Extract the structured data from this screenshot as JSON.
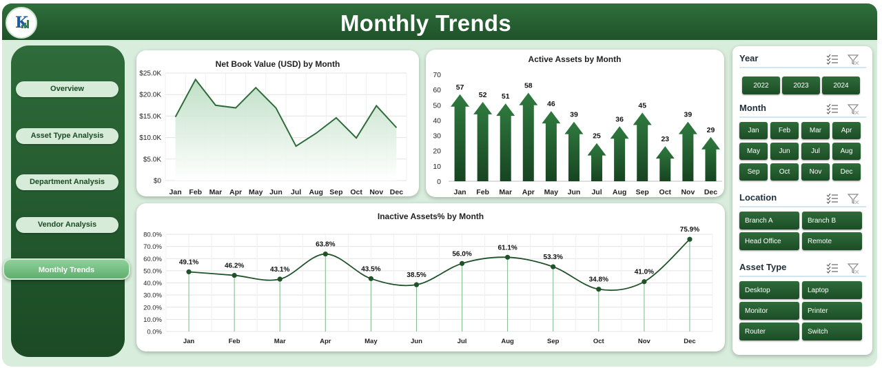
{
  "header": {
    "title": "Monthly Trends",
    "logo_text": "K"
  },
  "sidebar": {
    "items": [
      {
        "label": "Overview",
        "active": false
      },
      {
        "label": "Asset Type Analysis",
        "active": false
      },
      {
        "label": "Department Analysis",
        "active": false
      },
      {
        "label": "Vendor Analysis",
        "active": false
      },
      {
        "label": "Monthly Trends",
        "active": true
      }
    ]
  },
  "colors": {
    "primary": "#1f5229",
    "accent": "#2e6b3a",
    "light": "#d8eddc",
    "area_fill": "#dceee0"
  },
  "chart_data": [
    {
      "id": "nbv",
      "type": "area",
      "title": "Net Book Value (USD) by Month",
      "categories": [
        "Jan",
        "Feb",
        "Mar",
        "Apr",
        "May",
        "Jun",
        "Jul",
        "Aug",
        "Sep",
        "Oct",
        "Nov",
        "Dec"
      ],
      "values": [
        14800,
        23500,
        17500,
        16900,
        21600,
        16900,
        8000,
        11000,
        14600,
        9900,
        17400,
        12300
      ],
      "ylim": [
        0,
        25000
      ],
      "yticks": [
        0,
        5000,
        10000,
        15000,
        20000,
        25000
      ],
      "ytick_labels": [
        "$0",
        "$5.0K",
        "$10.0K",
        "$15.0K",
        "$20.0K",
        "$25.0K"
      ],
      "grid": true
    },
    {
      "id": "active",
      "type": "bar",
      "title": "Active Assets by Month",
      "categories": [
        "Jan",
        "Feb",
        "Mar",
        "Apr",
        "May",
        "Jun",
        "Jul",
        "Aug",
        "Sep",
        "Oct",
        "Nov",
        "Dec"
      ],
      "values": [
        57,
        52,
        51,
        58,
        46,
        39,
        25,
        36,
        45,
        23,
        39,
        29
      ],
      "ylim": [
        0,
        70
      ],
      "yticks": [
        0,
        10,
        20,
        30,
        40,
        50,
        60,
        70
      ],
      "marker": "arrow",
      "data_labels": true
    },
    {
      "id": "inactive",
      "type": "line",
      "title": "Inactive Assets% by Month",
      "categories": [
        "Jan",
        "Feb",
        "Mar",
        "Apr",
        "May",
        "Jun",
        "Jul",
        "Aug",
        "Sep",
        "Oct",
        "Nov",
        "Dec"
      ],
      "values": [
        49.1,
        46.2,
        43.1,
        63.8,
        43.5,
        38.5,
        56.0,
        61.1,
        53.3,
        34.8,
        41.0,
        75.9
      ],
      "value_labels": [
        "49.1%",
        "46.2%",
        "43.1%",
        "63.8%",
        "43.5%",
        "38.5%",
        "56.0%",
        "61.1%",
        "53.3%",
        "34.8%",
        "41.0%",
        "75.9%"
      ],
      "ylim": [
        0,
        80
      ],
      "yticks": [
        0,
        10,
        20,
        30,
        40,
        50,
        60,
        70,
        80
      ],
      "ytick_labels": [
        "0.0%",
        "10.0%",
        "20.0%",
        "30.0%",
        "40.0%",
        "50.0%",
        "60.0%",
        "70.0%",
        "80.0%"
      ],
      "grid": true,
      "smooth": true,
      "drop_lines": true
    }
  ],
  "slicers": [
    {
      "title": "Year",
      "items": [
        "2022",
        "2023",
        "2024"
      ]
    },
    {
      "title": "Month",
      "items": [
        "Jan",
        "Feb",
        "Mar",
        "Apr",
        "May",
        "Jun",
        "Jul",
        "Aug",
        "Sep",
        "Oct",
        "Nov",
        "Dec"
      ]
    },
    {
      "title": "Location",
      "items": [
        "Branch A",
        "Branch B",
        "Head Office",
        "Remote"
      ]
    },
    {
      "title": "Asset Type",
      "items": [
        "Desktop",
        "Laptop",
        "Monitor",
        "Printer",
        "Router",
        "Switch"
      ]
    }
  ]
}
